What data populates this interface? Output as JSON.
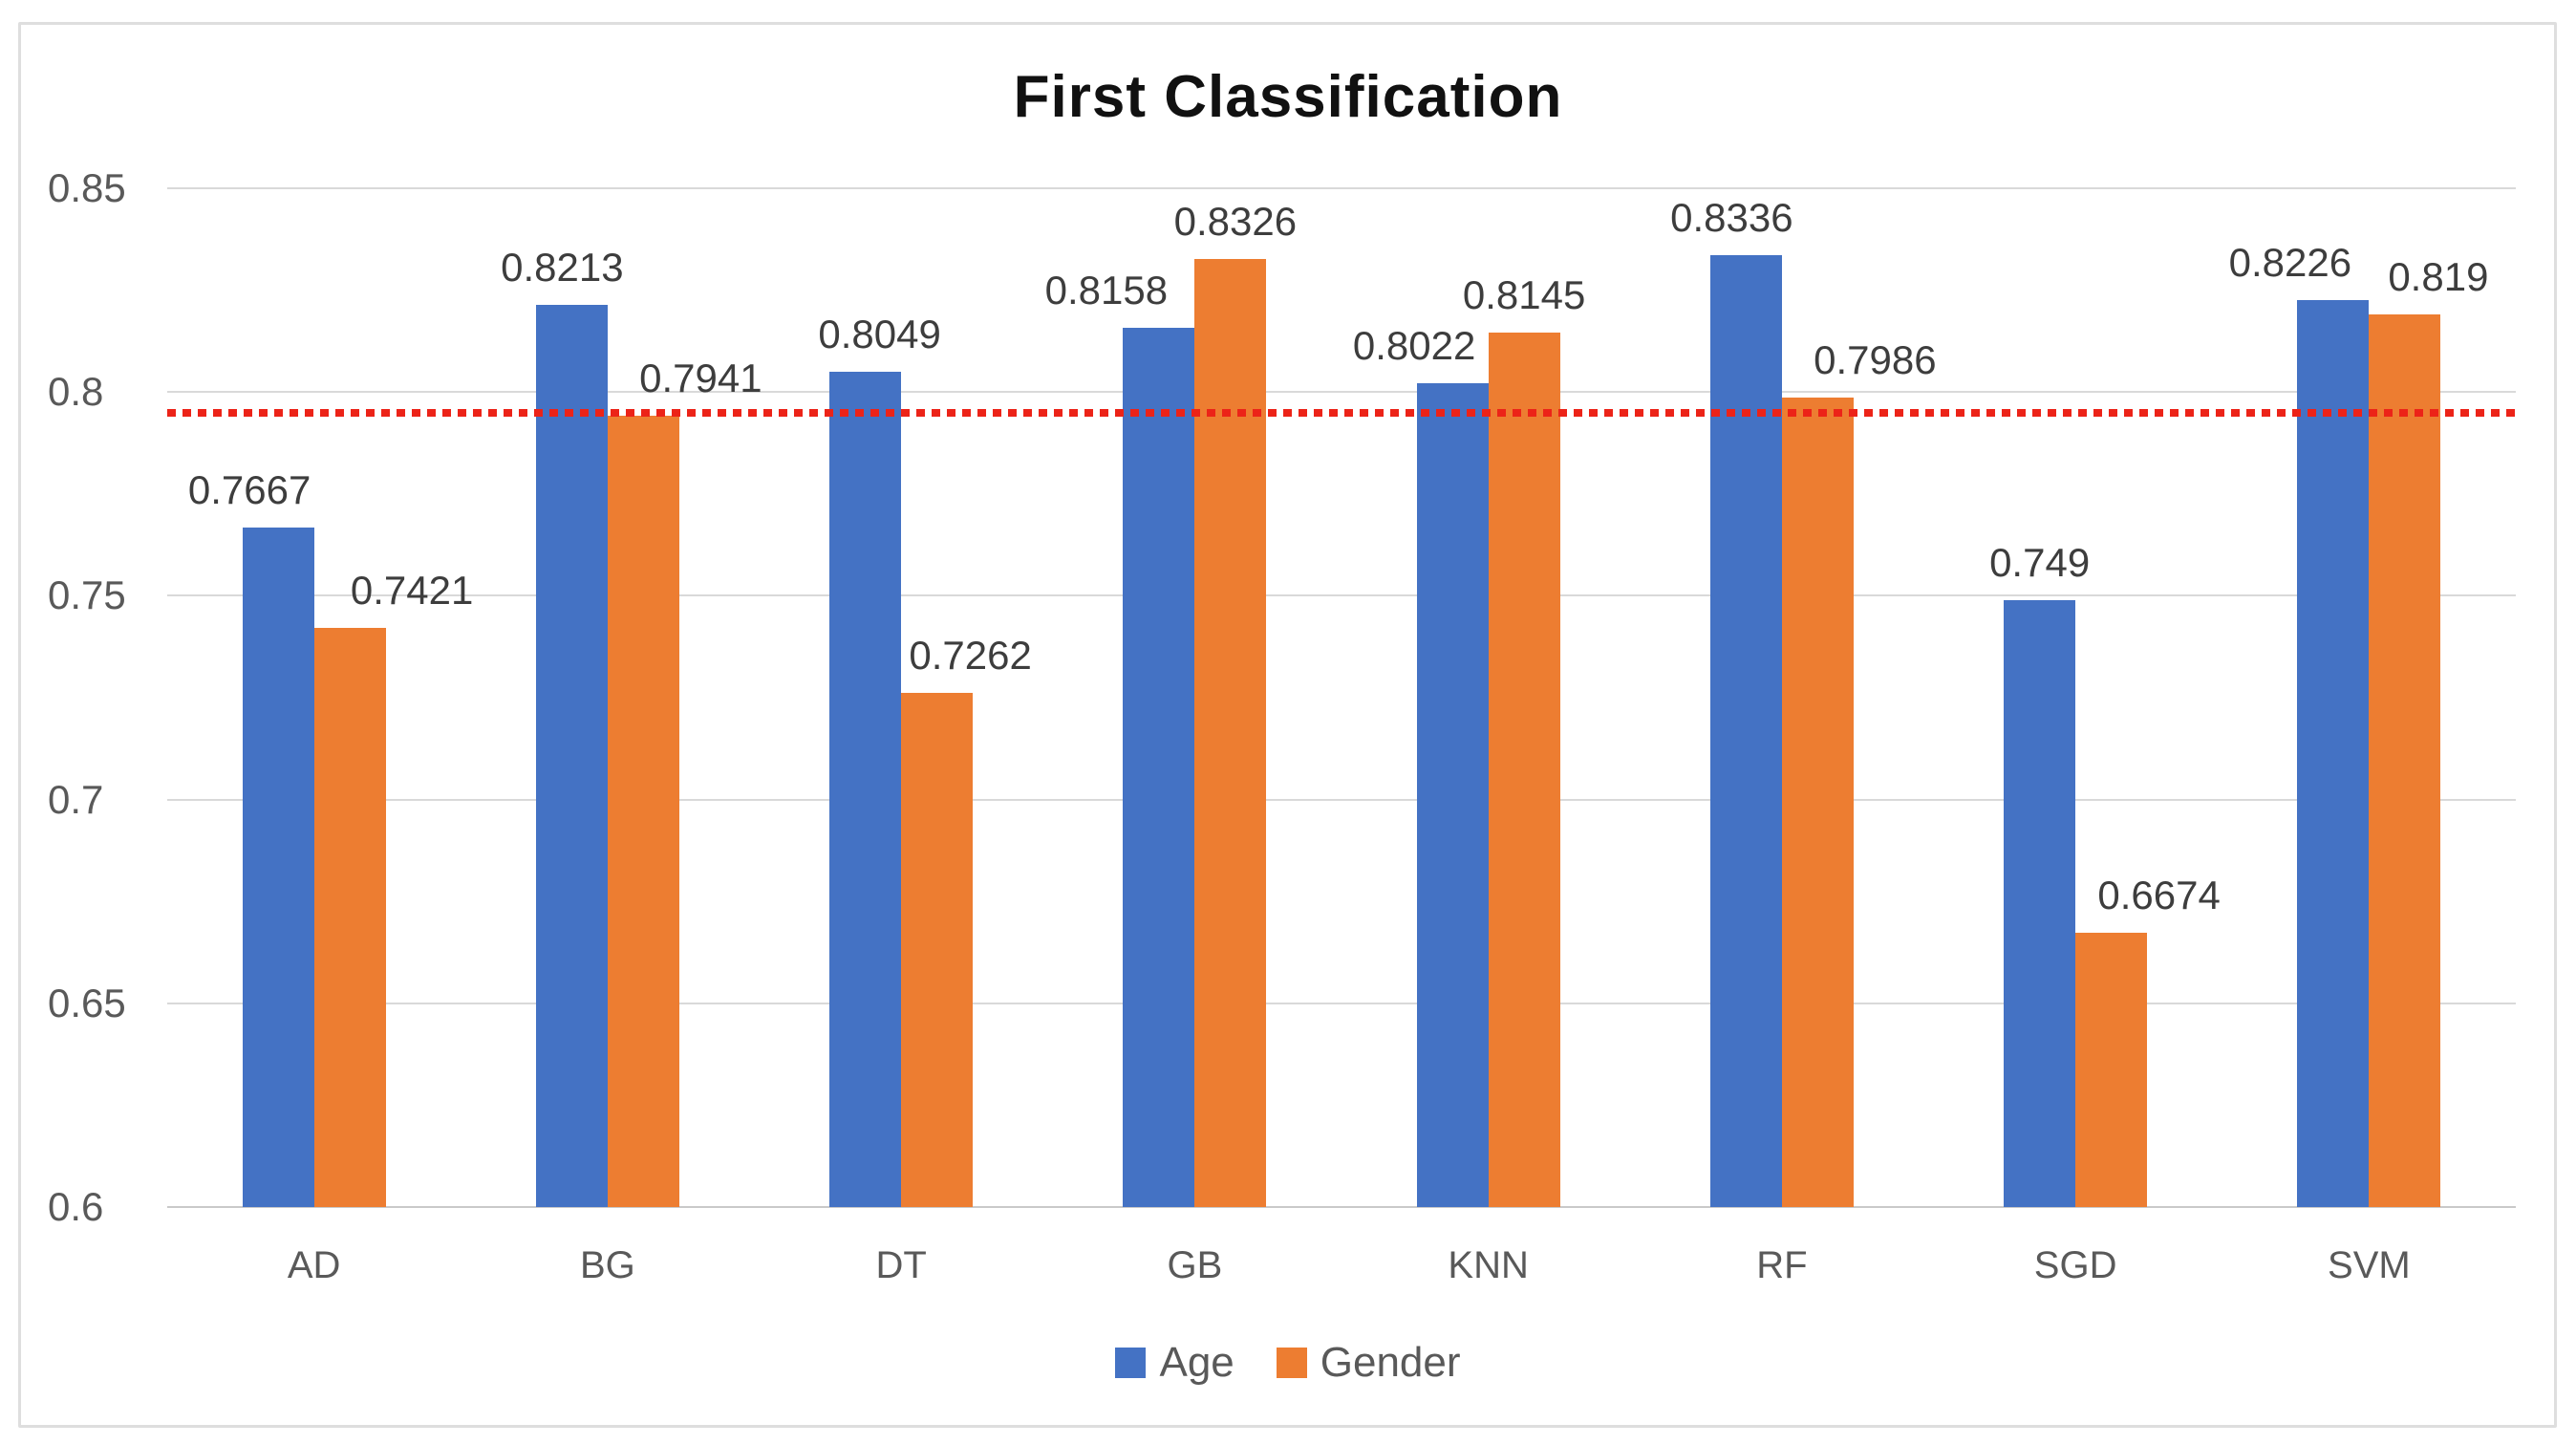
{
  "chart_data": {
    "type": "bar",
    "title": "First Classification",
    "categories": [
      "AD",
      "BG",
      "DT",
      "GB",
      "KNN",
      "RF",
      "SGD",
      "SVM"
    ],
    "series": [
      {
        "name": "Age",
        "color": "#4472C4",
        "values": [
          0.7667,
          0.8213,
          0.8049,
          0.8158,
          0.8022,
          0.8336,
          0.749,
          0.8226
        ],
        "labels": [
          "0.7667",
          "0.8213",
          "0.8049",
          "0.8158",
          "0.8022",
          "0.8336",
          "0.749",
          "0.8226"
        ]
      },
      {
        "name": "Gender",
        "color": "#ED7D31",
        "values": [
          0.7421,
          0.7941,
          0.7262,
          0.8326,
          0.8145,
          0.7986,
          0.6674,
          0.819
        ],
        "labels": [
          "0.7421",
          "0.7941",
          "0.7262",
          "0.8326",
          "0.8145",
          "0.7986",
          "0.6674",
          "0.819"
        ]
      }
    ],
    "y_axis": {
      "min": 0.6,
      "max": 0.85,
      "step": 0.05,
      "tick_labels": [
        "0.85",
        "0.8",
        "0.75",
        "0.7",
        "0.65",
        "0.6"
      ]
    },
    "threshold_line": {
      "value": 0.795,
      "color": "#EC2318",
      "style": "dotted"
    },
    "grid": true,
    "gridline_color": "#D9D9D9",
    "legend_position": "bottom",
    "data_labels_shown": true
  }
}
